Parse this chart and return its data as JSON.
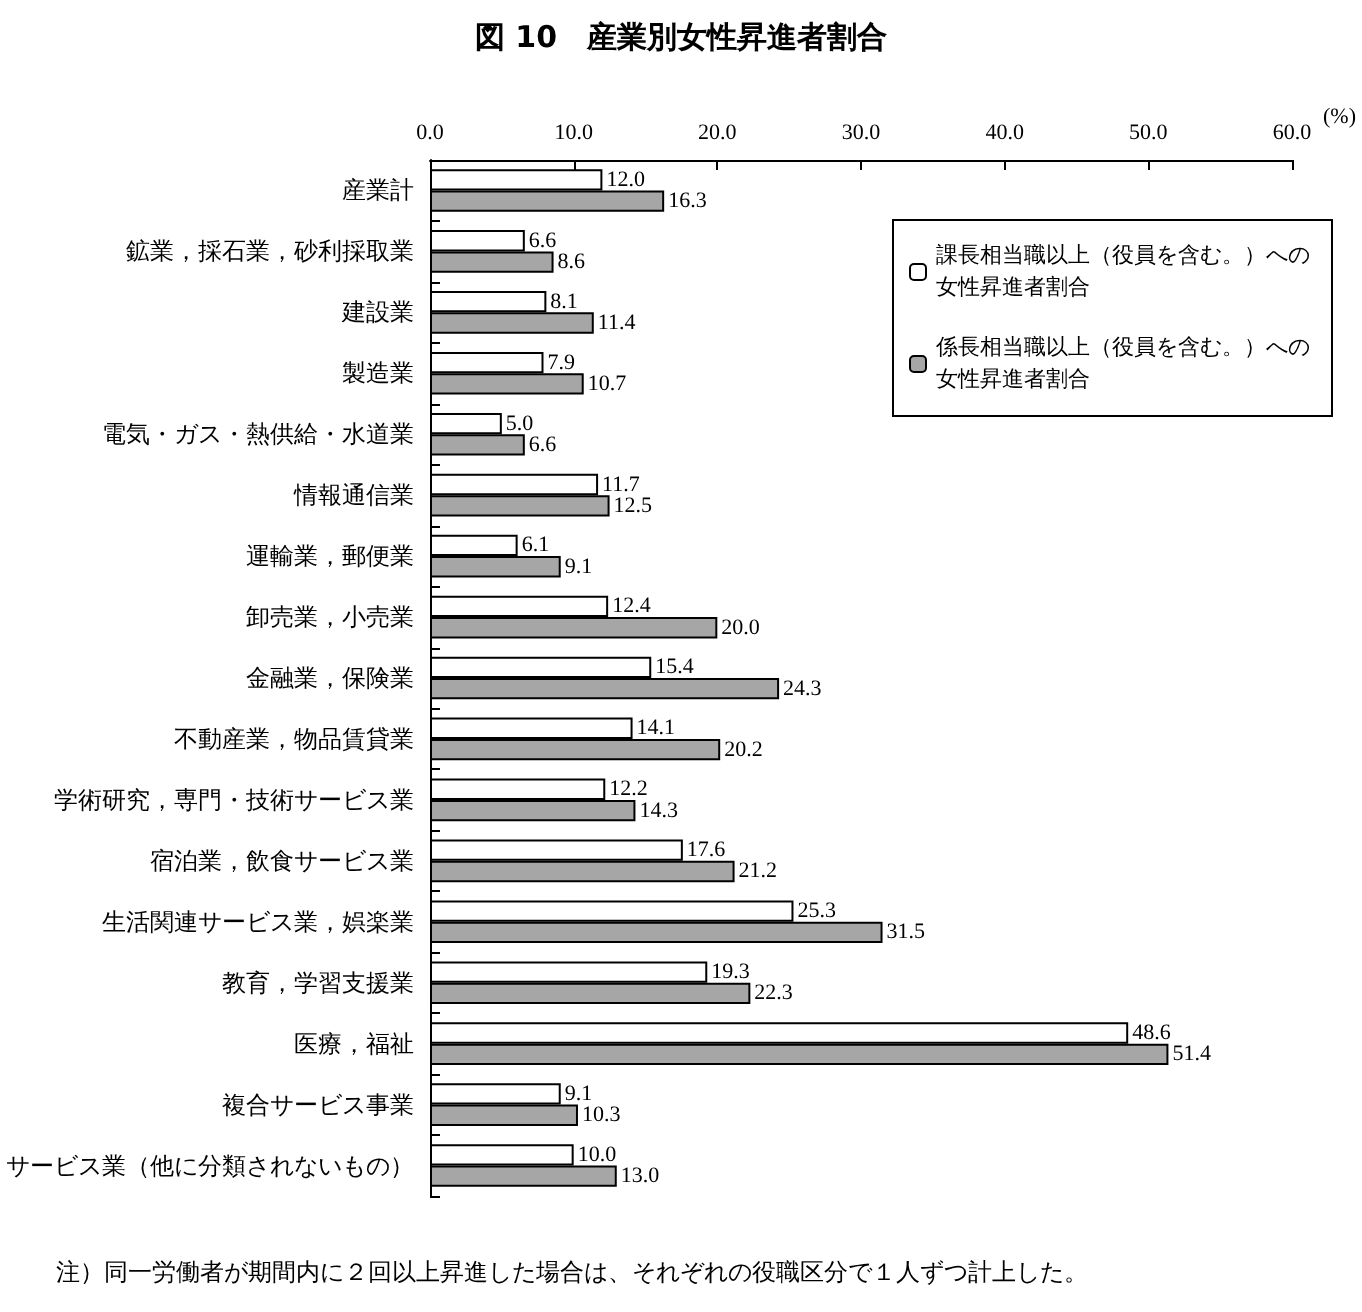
{
  "chart_data": {
    "type": "bar",
    "orientation": "horizontal",
    "title": "図 10　産業別女性昇進者割合",
    "xlabel": "(%)",
    "categories": [
      "産業計",
      "鉱業，採石業，砂利採取業",
      "建設業",
      "製造業",
      "電気・ガス・熱供給・水道業",
      "情報通信業",
      "運輸業，郵便業",
      "卸売業，小売業",
      "金融業，保険業",
      "不動産業，物品賃貸業",
      "学術研究，専門・技術サービス業",
      "宿泊業，飲食サービス業",
      "生活関連サービス業，娯楽業",
      "教育，学習支援業",
      "医療，福祉",
      "複合サービス事業",
      "サービス業（他に分類されないもの）"
    ],
    "series": [
      {
        "name": "課長相当職以上（役員を含む。）への女性昇進者割合",
        "color": "#ffffff",
        "values": [
          12.0,
          6.6,
          8.1,
          7.9,
          5.0,
          11.7,
          6.1,
          12.4,
          15.4,
          14.1,
          12.2,
          17.6,
          25.3,
          19.3,
          48.6,
          9.1,
          10.0
        ],
        "value_labels": [
          "12.0",
          "6.6",
          "8.1",
          "7.9",
          "5.0",
          "11.7",
          "6.1",
          "12.4",
          "15.4",
          "14.1",
          "12.2",
          "17.6",
          "25.3",
          "19.3",
          "48.6",
          "9.1",
          "10.0"
        ]
      },
      {
        "name": "係長相当職以上（役員を含む。）への女性昇進者割合",
        "color": "#a6a6a6",
        "values": [
          16.3,
          8.6,
          11.4,
          10.7,
          6.6,
          12.5,
          9.1,
          20.0,
          24.3,
          20.2,
          14.3,
          21.2,
          31.5,
          22.3,
          51.4,
          10.3,
          13.0
        ],
        "value_labels": [
          "16.3",
          "8.6",
          "11.4",
          "10.7",
          "6.6",
          "12.5",
          "9.1",
          "20.0",
          "24.3",
          "20.2",
          "14.3",
          "21.2",
          "31.5",
          "22.3",
          "51.4",
          "10.3",
          "13.0"
        ]
      }
    ],
    "xlim": [
      0,
      60
    ],
    "xticks": [
      {
        "value": 0,
        "label": "0.0"
      },
      {
        "value": 10,
        "label": "10.0"
      },
      {
        "value": 20,
        "label": "20.0"
      },
      {
        "value": 30,
        "label": "30.0"
      },
      {
        "value": 40,
        "label": "40.0"
      },
      {
        "value": 50,
        "label": "50.0"
      },
      {
        "value": 60,
        "label": "60.0"
      }
    ],
    "legend": "top right",
    "annotations": [
      "注）同一労働者が期間内に２回以上昇進した場合は、それぞれの役職区分で１人ずつ計上した。"
    ]
  }
}
